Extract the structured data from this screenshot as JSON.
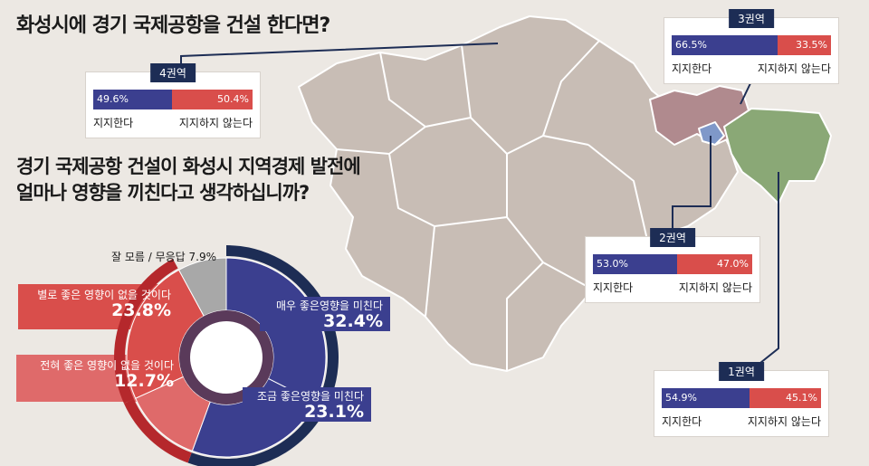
{
  "title": "화성시에 경기 국제공항을 건설 한다면?",
  "question": "경기 국제공항 건설이 화성시 지역경제 발전에 얼마나 영향을 끼친다고 생각하십니까?",
  "regions": [
    {
      "tag": "4권역",
      "support": "49.6%",
      "oppose": "50.4%",
      "support_value": 49.6,
      "support_label": "지지한다",
      "oppose_label": "지지하지 않는다"
    },
    {
      "tag": "3권역",
      "support": "66.5%",
      "oppose": "33.5%",
      "support_value": 66.5,
      "support_label": "지지한다",
      "oppose_label": "지지하지 않는다"
    },
    {
      "tag": "2권역",
      "support": "53.0%",
      "oppose": "47.0%",
      "support_value": 53.0,
      "support_label": "지지한다",
      "oppose_label": "지지하지 않는다"
    },
    {
      "tag": "1권역",
      "support": "54.9%",
      "oppose": "45.1%",
      "support_value": 54.9,
      "support_label": "지지한다",
      "oppose_label": "지지하지 않는다"
    }
  ],
  "colors": {
    "support": "#3b3f8f",
    "oppose": "#d94e4b",
    "tag": "#1d2d55",
    "map": "#c8bdb5"
  },
  "chart_data": {
    "type": "pie",
    "categories": [
      "매우 좋은영향을 미친다",
      "조금 좋은영향을 미친다",
      "전혀 좋은 영향이 없을 것이다",
      "별로 좋은 영향이 없을 것이다",
      "잘 모름 / 무응답"
    ],
    "values": [
      32.4,
      23.1,
      12.7,
      23.8,
      7.9
    ],
    "labels": [
      "32.4%",
      "23.1%",
      "12.7%",
      "23.8%",
      "7.9%"
    ],
    "colors": [
      "#3b3f8f",
      "#3b3f8f",
      "#df6a6a",
      "#d94e4b",
      "#a8a8a8"
    ]
  },
  "donut_text": {
    "c0": "매우 좋은영향을 미친다",
    "v0": "32.4%",
    "c1": "조금 좋은영향을 미친다",
    "v1": "23.1%",
    "c2": "전혀 좋은 영향이 없을 것이다",
    "v2": "12.7%",
    "c3": "별로 좋은 영향이 없을 것이다",
    "v3": "23.8%",
    "c4": "잘 모름 / 무응답 7.9%"
  }
}
